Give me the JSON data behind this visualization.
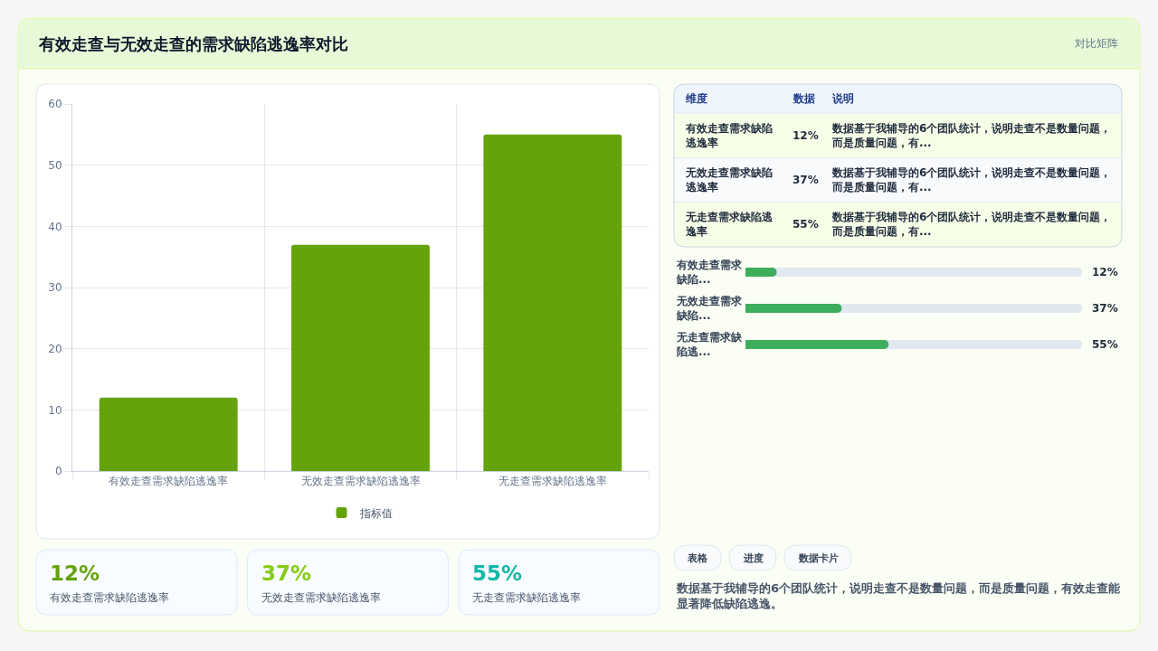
{
  "chart_data": [
    {
      "type": "other",
      "title": "有效走查与无效走查的需求缺陷逃逸率对比",
      "subtitle": "对比矩阵"
    },
    {
      "type": "bar",
      "categories": [
        "有效走查需求缺陷逃逸率",
        "无效走查需求缺陷逃逸率",
        "无走查需求缺陷逃逸率"
      ],
      "series": [
        {
          "name": "指标值",
          "color": "#65a30d",
          "values": [
            12,
            37,
            55
          ]
        }
      ],
      "ylim": [
        0,
        60
      ],
      "yticks": [
        0,
        10,
        20,
        30,
        40,
        50,
        60
      ],
      "grid": true,
      "legend": "bottom"
    },
    {
      "type": "other",
      "categories": [
        "有效走查需求缺陷逃逸率",
        "无效走查需求缺陷逃逸率",
        "无走查需求缺陷逃逸率"
      ],
      "values": [
        12,
        37,
        55
      ],
      "value_labels": [
        "12%",
        "37%",
        "55%"
      ],
      "annotations": [
        "维度",
        "数据",
        "说明",
        "数据基于我辅导的6个团队统计，说明走查不是数量问题，而是质量问题，有...",
        "数据基于我辅导的6个团队统计，说明走查不是数量问题，而是质量问题，有...",
        "数据基于我辅导的6个团队统计，说明走查不是数量问题，而是质量问题，有..."
      ]
    },
    {
      "type": "bar",
      "orientation": "horizontal",
      "categories": [
        "有效走查需求缺陷...",
        "无效走查需求缺陷...",
        "无走查需求缺陷逃..."
      ],
      "values": [
        12,
        37,
        55
      ],
      "color": "#3dae5c",
      "value_labels": [
        "12%",
        "37%",
        "55%"
      ]
    },
    {
      "type": "other",
      "categories": [
        "有效走查需求缺陷逃逸率",
        "无效走查需求缺陷逃逸率",
        "无走查需求缺陷逃逸率"
      ],
      "values": [
        12,
        37,
        55
      ],
      "value_labels": [
        "12%",
        "37%",
        "55%"
      ]
    },
    {
      "type": "other",
      "categories": [
        "表格",
        "进度",
        "数据卡片"
      ],
      "annotations": [
        "数据基于我辅导的6个团队统计，说明走查不是数量问题，而是质量问题，有效走查能显著降低缺陷逃逸。"
      ]
    }
  ]
}
